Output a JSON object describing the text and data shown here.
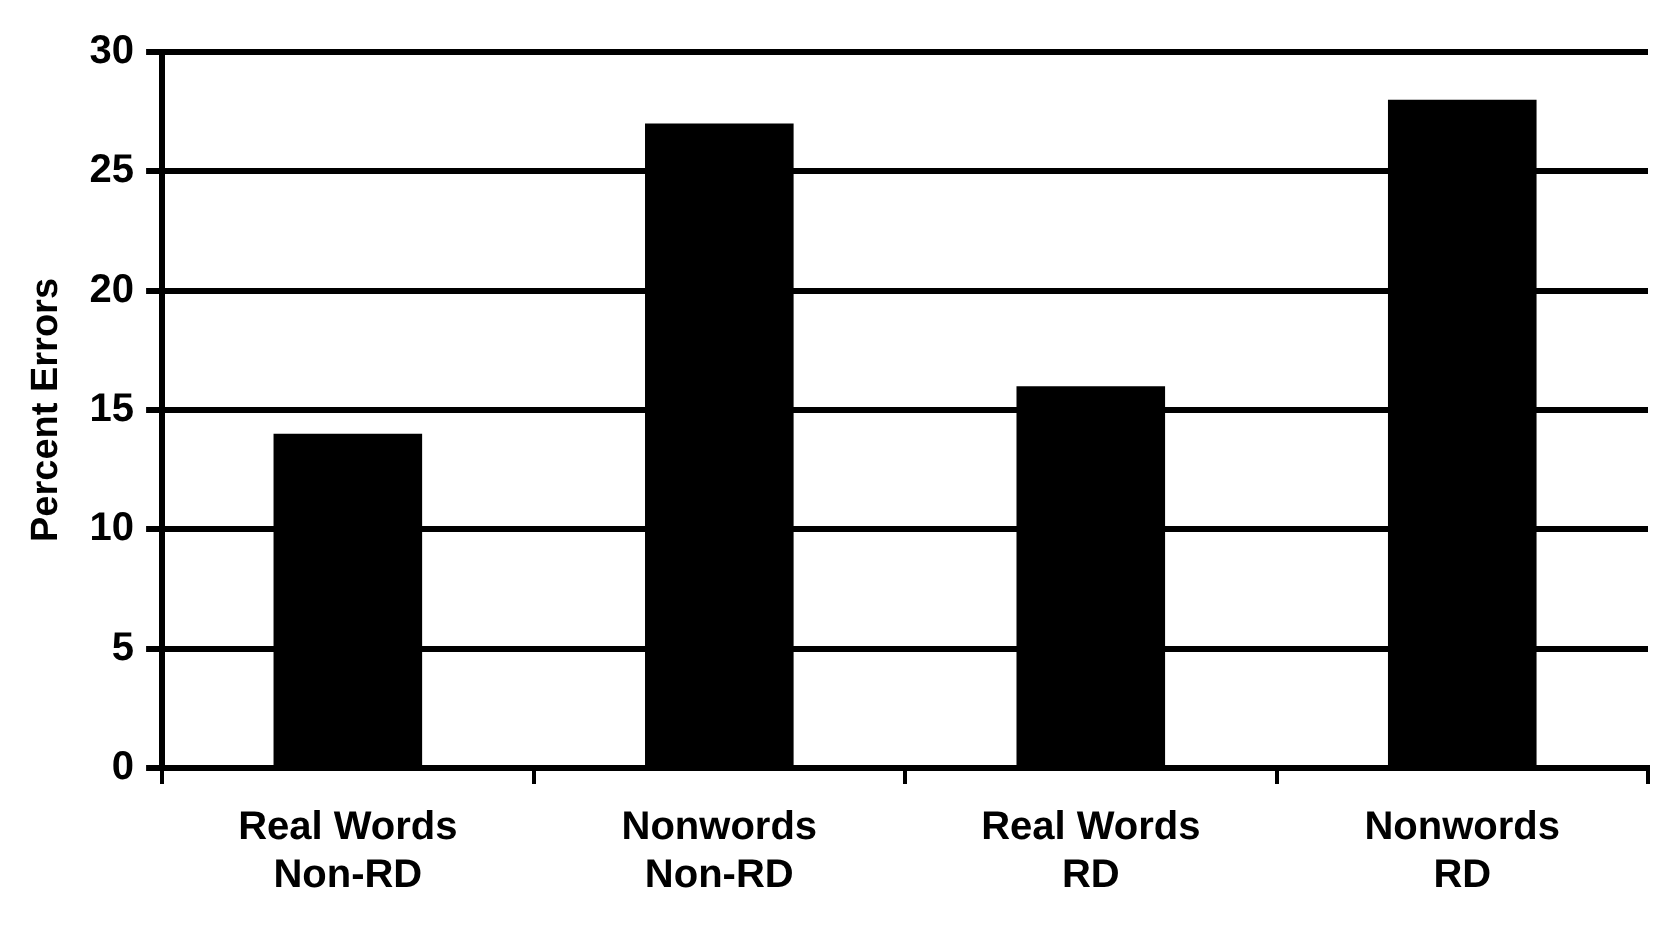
{
  "chart_data": {
    "type": "bar",
    "ylabel": "Percent Errors",
    "categories": [
      "Real Words\nNon-RD",
      "Nonwords\nNon-RD",
      "Real Words\nRD",
      "Nonwords\nRD"
    ],
    "values": [
      14,
      27,
      16,
      28
    ],
    "color": "#000000",
    "ylim": [
      0,
      30
    ],
    "yticks": [
      0,
      5,
      10,
      15,
      20,
      25,
      30
    ],
    "grid": "y",
    "legend": false
  }
}
